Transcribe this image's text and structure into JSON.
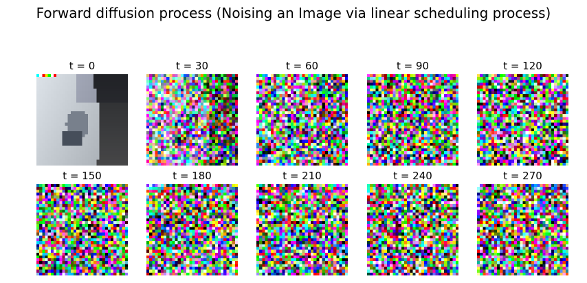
{
  "title": "Forward diffusion process (Noising an Image via linear scheduling process)",
  "panels": [
    {
      "label": "t = 0",
      "timestep": 0
    },
    {
      "label": "t = 30",
      "timestep": 30
    },
    {
      "label": "t = 60",
      "timestep": 60
    },
    {
      "label": "t = 90",
      "timestep": 90
    },
    {
      "label": "t = 120",
      "timestep": 120
    },
    {
      "label": "t = 150",
      "timestep": 150
    },
    {
      "label": "t = 180",
      "timestep": 180
    },
    {
      "label": "t = 210",
      "timestep": 210
    },
    {
      "label": "t = 240",
      "timestep": 240
    },
    {
      "label": "t = 270",
      "timestep": 270
    }
  ]
}
